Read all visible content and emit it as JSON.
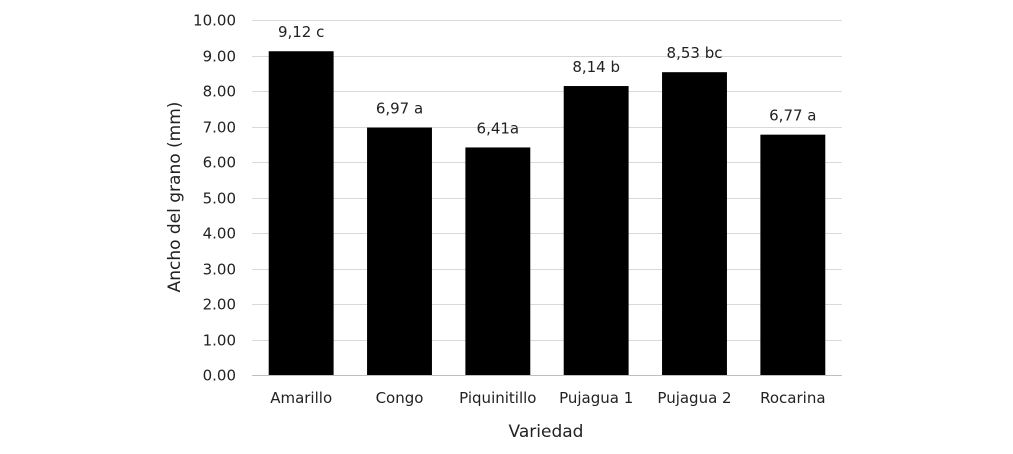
{
  "chart_data": {
    "type": "bar",
    "title": "",
    "xlabel": "Variedad",
    "ylabel": "Ancho del grano (mm)",
    "categories": [
      "Amarillo",
      "Congo",
      "Piquinitillo",
      "Pujagua 1",
      "Pujagua 2",
      "Rocarina"
    ],
    "values": [
      9.12,
      6.97,
      6.41,
      8.14,
      8.53,
      6.77
    ],
    "data_labels": [
      "9,12 c",
      "6,97 a",
      "6,41a",
      "8,14 b",
      "8,53 bc",
      "6,77 a"
    ],
    "ylim": [
      0,
      10
    ],
    "yticks": [
      "0.00",
      "1.00",
      "2.00",
      "3.00",
      "4.00",
      "5.00",
      "6.00",
      "7.00",
      "8.00",
      "9.00",
      "10.00"
    ],
    "grid": true,
    "legend": "none",
    "bar_color": "#000000",
    "grid_color": "#d9d9d9"
  }
}
